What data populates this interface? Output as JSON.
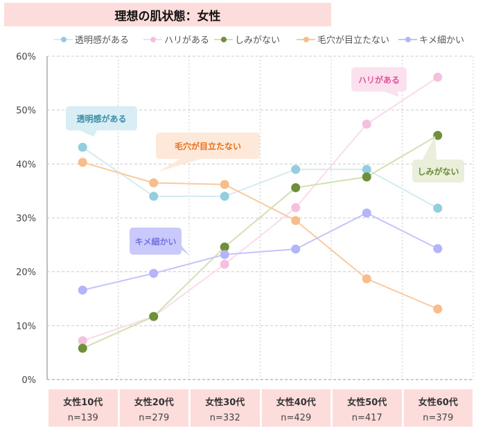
{
  "chart_data": {
    "type": "line",
    "title": "理想の肌状態：女性",
    "categories": [
      "女性10代",
      "女性20代",
      "女性30代",
      "女性40代",
      "女性50代",
      "女性60代"
    ],
    "sample_sizes": [
      "n=139",
      "n=279",
      "n=332",
      "n=429",
      "n=417",
      "n=379"
    ],
    "yticks": [
      "0%",
      "10%",
      "20%",
      "30%",
      "40%",
      "50%",
      "60%"
    ],
    "ylim": [
      0,
      60
    ],
    "grid": true,
    "legend": "top",
    "series": [
      {
        "name": "透明感がある",
        "values": [
          43.1,
          34.0,
          34.0,
          39.0,
          39.0,
          31.8
        ],
        "line_color": "#d5eaf2",
        "marker_color": "#92cde0",
        "label_color": "#3a8ca8",
        "label_bg": "#d9eef4"
      },
      {
        "name": "ハリがある",
        "values": [
          7.2,
          11.7,
          21.4,
          31.9,
          47.4,
          56.1
        ],
        "line_color": "#fadbe9",
        "marker_color": "#f5bfe0",
        "label_color": "#e0559a",
        "label_bg": "#fbe0ee"
      },
      {
        "name": "しみがない",
        "values": [
          5.8,
          11.7,
          24.6,
          35.6,
          37.6,
          45.3
        ],
        "line_color": "#d2e0b4",
        "marker_color": "#6f8f3a",
        "label_color": "#6a8a30",
        "label_bg": "#e9efdb"
      },
      {
        "name": "毛穴が目立たない",
        "values": [
          40.3,
          36.5,
          36.2,
          29.5,
          18.7,
          13.1
        ],
        "line_color": "#f9c9a0",
        "marker_color": "#f8bd8b",
        "label_color": "#e8701a",
        "label_bg": "#fde8d9"
      },
      {
        "name": "キメ細かい",
        "values": [
          16.6,
          19.7,
          23.2,
          24.2,
          30.9,
          24.3
        ],
        "line_color": "#c4c4fc",
        "marker_color": "#b4b4fb",
        "label_color": "#7272e0",
        "label_bg": "#c9c9fb"
      }
    ]
  }
}
